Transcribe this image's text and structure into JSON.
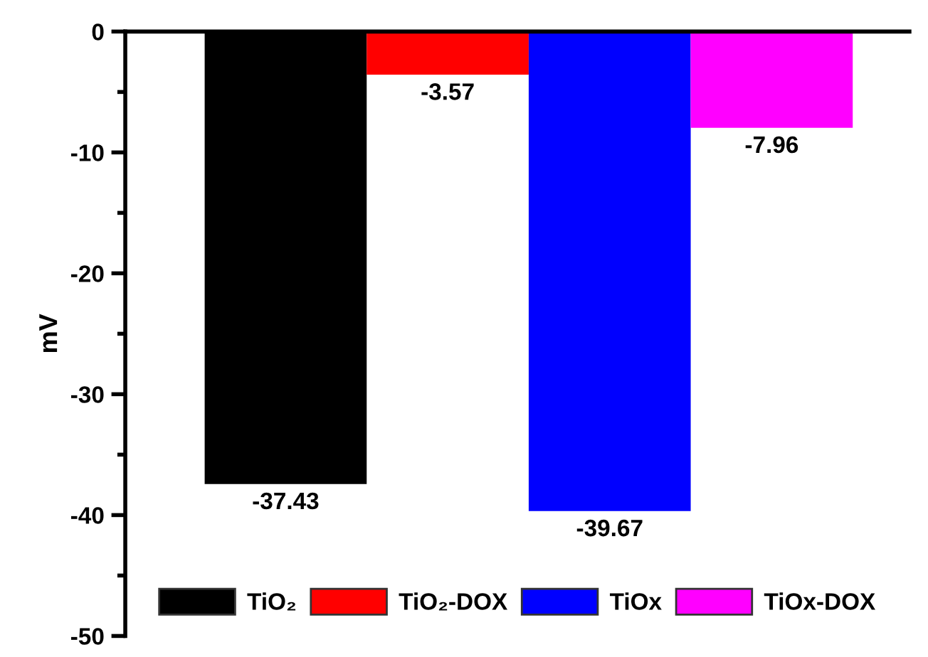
{
  "chart_data": {
    "type": "bar",
    "ylabel": "mV",
    "categories": [
      null,
      null,
      null,
      null
    ],
    "series": [
      {
        "name": "TiO₂",
        "color": "#000000",
        "values": [
          -37.43,
          null,
          null,
          null
        ]
      },
      {
        "name": "TiO₂-DOX",
        "color": "#ff0000",
        "values": [
          null,
          -3.57,
          null,
          null
        ]
      },
      {
        "name": "TiOx",
        "color": "#0000ff",
        "values": [
          null,
          null,
          -39.67,
          null
        ]
      },
      {
        "name": "TiOx-DOX",
        "color": "#ff00ff",
        "values": [
          null,
          null,
          null,
          -7.96
        ]
      }
    ],
    "ylim": [
      -50,
      0
    ],
    "yticks": [
      0,
      {
        "value": -5,
        "label": null
      },
      -10,
      {
        "value": -15,
        "label": null
      },
      -20,
      {
        "value": -25,
        "label": null
      },
      -30,
      {
        "value": -35,
        "label": null
      },
      -40,
      {
        "value": -45,
        "label": null
      },
      -50
    ],
    "data_labels": true,
    "legend": "bottom",
    "grid": false
  }
}
